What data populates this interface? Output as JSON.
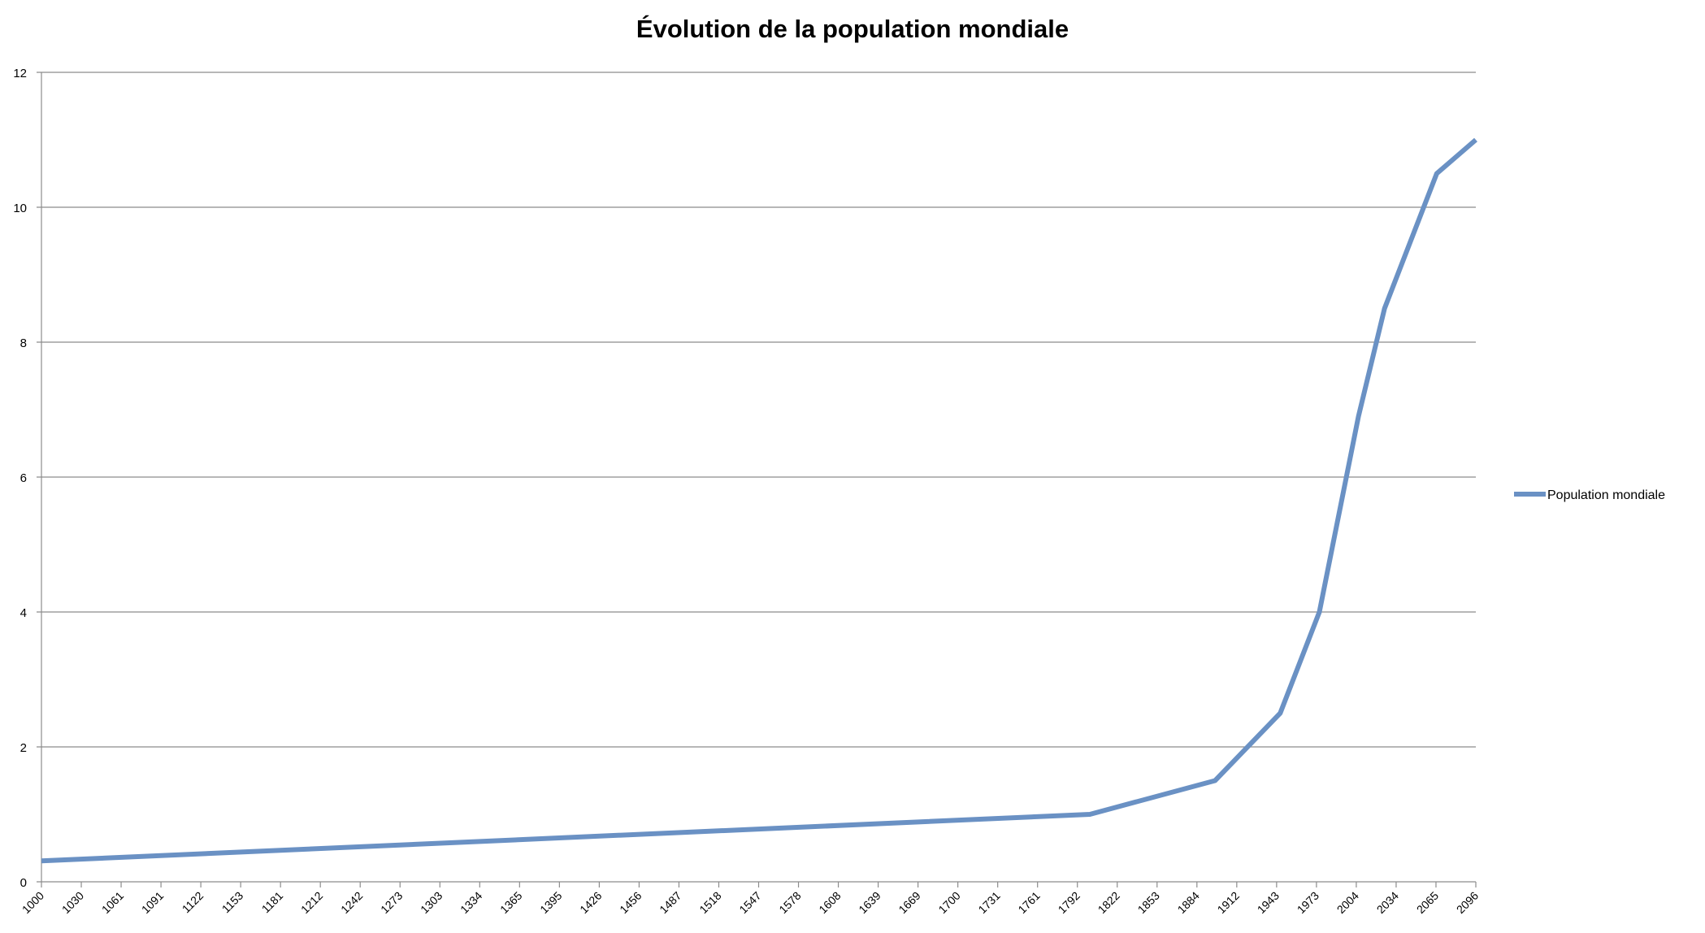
{
  "colors": {
    "series": "#6a91c4",
    "grid": "#8c8c8c",
    "axis": "#8c8c8c",
    "text": "#000000",
    "background": "#ffffff"
  },
  "chart_data": {
    "type": "line",
    "title": "Évolution de la population mondiale",
    "xlabel": "",
    "ylabel": "",
    "ylim": [
      0,
      12
    ],
    "yticks": [
      0,
      2,
      4,
      6,
      8,
      10,
      12
    ],
    "grid": true,
    "legend_position": "right",
    "categories": [
      "1000",
      "1030",
      "1061",
      "1091",
      "1122",
      "1153",
      "1181",
      "1212",
      "1242",
      "1273",
      "1303",
      "1334",
      "1365",
      "1395",
      "1426",
      "1456",
      "1487",
      "1518",
      "1547",
      "1578",
      "1608",
      "1639",
      "1669",
      "1700",
      "1731",
      "1761",
      "1792",
      "1822",
      "1853",
      "1884",
      "1912",
      "1943",
      "1973",
      "2004",
      "2034",
      "2065",
      "2096"
    ],
    "series": [
      {
        "name": "Population mondiale",
        "points": [
          [
            1000,
            0.31
          ],
          [
            1804,
            1.0
          ],
          [
            1900,
            1.5
          ],
          [
            1950,
            2.5
          ],
          [
            1980,
            4.0
          ],
          [
            2010,
            6.9
          ],
          [
            2030,
            8.5
          ],
          [
            2070,
            10.5
          ],
          [
            2100,
            11.0
          ]
        ]
      }
    ]
  }
}
